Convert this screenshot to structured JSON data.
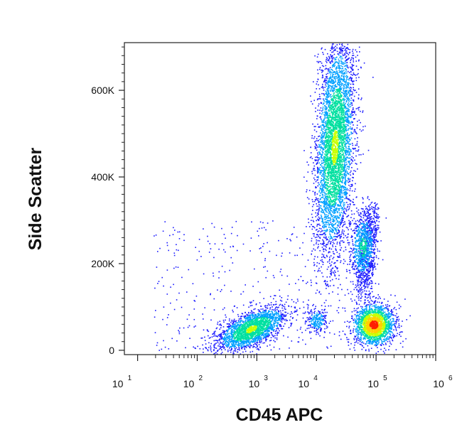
{
  "chart_data": {
    "type": "scatter",
    "subtype": "flow cytometry density dot plot",
    "title": "",
    "xlabel": "CD45 APC",
    "ylabel": "Side Scatter",
    "x_scale": "log",
    "x_range": [
      6,
      1000000
    ],
    "x_ticks": [
      {
        "value": 10,
        "base": "10",
        "exp": "1"
      },
      {
        "value": 100,
        "base": "10",
        "exp": "2"
      },
      {
        "value": 1000,
        "base": "10",
        "exp": "3"
      },
      {
        "value": 10000,
        "base": "10",
        "exp": "4"
      },
      {
        "value": 100000,
        "base": "10",
        "exp": "5"
      },
      {
        "value": 1000000,
        "base": "10",
        "exp": "6"
      }
    ],
    "y_scale": "linear",
    "y_range": [
      -10000,
      710000
    ],
    "y_ticks": [
      {
        "value": 0,
        "label": "0"
      },
      {
        "value": 200000,
        "label": "200K"
      },
      {
        "value": 400000,
        "label": "400K"
      },
      {
        "value": 600000,
        "label": "600K"
      }
    ],
    "grid": false,
    "legend": "none",
    "color_scale": [
      "#1a1aff",
      "#00a0ff",
      "#00e0a0",
      "#c8ff00",
      "#ffd000",
      "#ff2000"
    ],
    "populations": [
      {
        "center_x": 800,
        "center_y": 50000,
        "peak_density": 0.55
      },
      {
        "center_x": 20000,
        "center_y": 470000,
        "peak_density": 0.55
      },
      {
        "center_x": 60000,
        "center_y": 240000,
        "peak_density": 0.35
      },
      {
        "center_x": 90000,
        "center_y": 60000,
        "peak_density": 1.0
      },
      {
        "center_x": 10000,
        "center_y": 70000,
        "peak_density": 0.3
      }
    ]
  }
}
